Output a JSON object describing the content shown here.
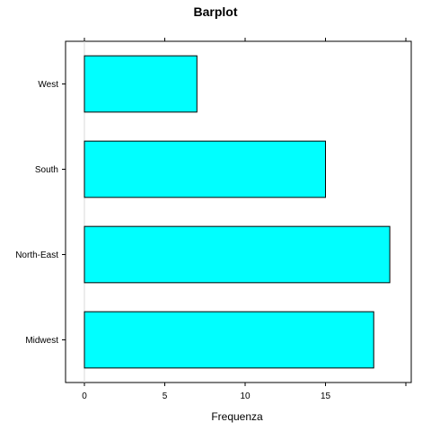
{
  "chart_data": {
    "type": "bar",
    "orientation": "horizontal",
    "title": "Barplot",
    "xlabel": "Frequenza",
    "ylabel": "",
    "categories": [
      "Midwest",
      "North-East",
      "South",
      "West"
    ],
    "values": [
      18,
      19,
      15,
      7
    ],
    "xlim": [
      0,
      20
    ],
    "xticks": [
      0,
      5,
      10,
      15
    ],
    "grid": false,
    "legend": "none",
    "colors": {
      "bar_fill": "#00ffff",
      "bar_stroke": "#000000",
      "frame": "#000000",
      "reference_line": "#d8d8d8"
    }
  }
}
